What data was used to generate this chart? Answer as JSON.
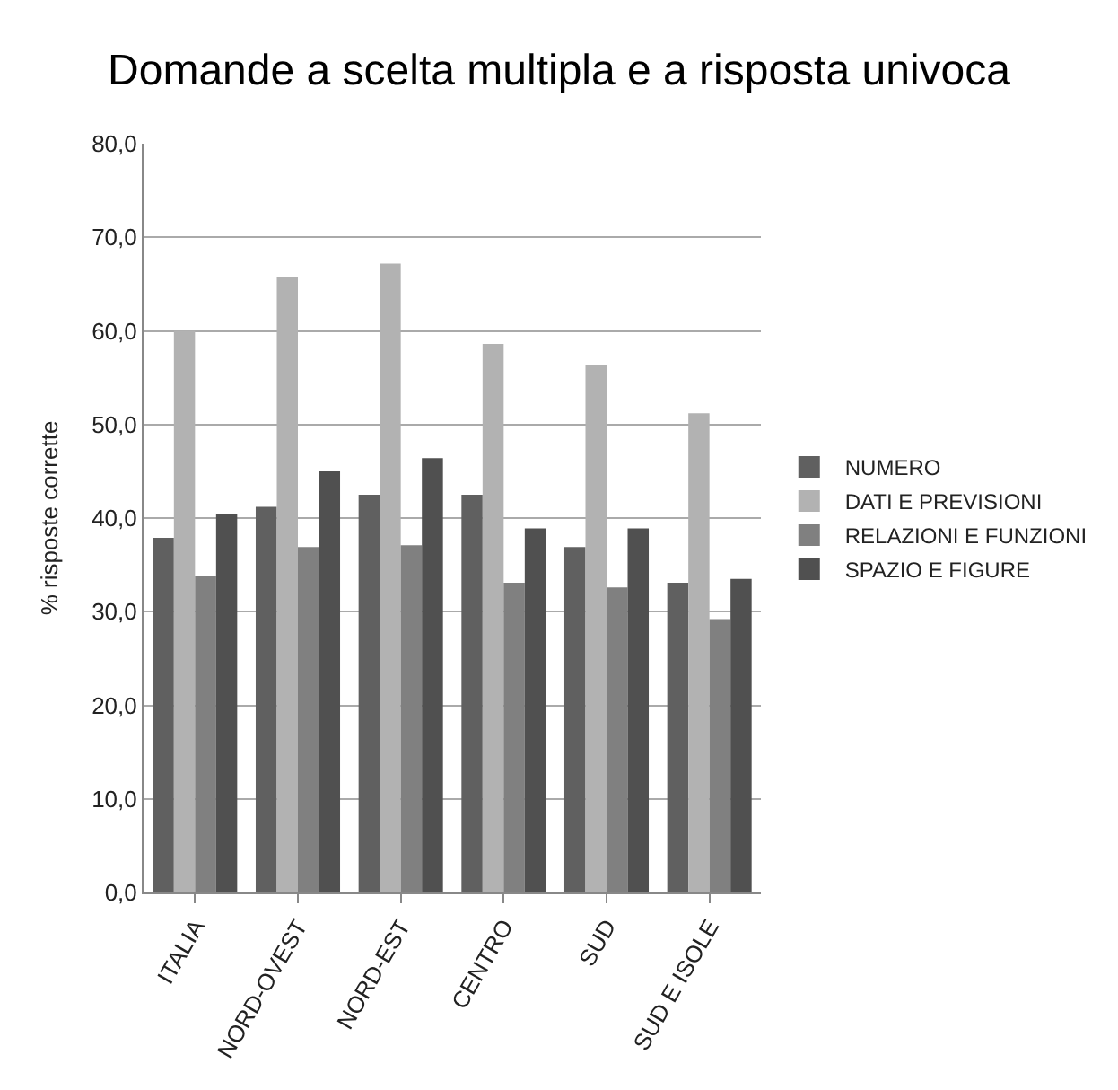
{
  "chart_data": {
    "type": "bar",
    "title": "Domande a scelta multipla e a risposta univoca",
    "ylabel": "% risposte corrette",
    "categories": [
      "ITALIA",
      "NORD-OVEST",
      "NORD-EST",
      "CENTRO",
      "SUD",
      "SUD E ISOLE"
    ],
    "series": [
      {
        "name": "NUMERO",
        "color": "#606060",
        "values": [
          37.9,
          41.2,
          42.5,
          42.5,
          36.9,
          33.1
        ]
      },
      {
        "name": "DATI E PREVISIONI",
        "color": "#b2b2b2",
        "values": [
          60.0,
          65.7,
          67.2,
          58.6,
          56.3,
          51.2
        ]
      },
      {
        "name": "RELAZIONI E FUNZIONI",
        "color": "#808080",
        "values": [
          33.8,
          36.9,
          37.1,
          33.1,
          32.6,
          29.2
        ]
      },
      {
        "name": "SPAZIO E FIGURE",
        "color": "#505050",
        "values": [
          40.4,
          45.0,
          46.4,
          38.9,
          38.9,
          33.5
        ]
      }
    ],
    "ylim": [
      0,
      80
    ],
    "yticks": [
      {
        "value": 0,
        "label": "0,0"
      },
      {
        "value": 10,
        "label": "10,0"
      },
      {
        "value": 20,
        "label": "20,0"
      },
      {
        "value": 30,
        "label": "30,0"
      },
      {
        "value": 40,
        "label": "40,0"
      },
      {
        "value": 50,
        "label": "50,0"
      },
      {
        "value": 60,
        "label": "60,0"
      },
      {
        "value": 70,
        "label": "70,0"
      },
      {
        "value": 80,
        "label": "80,0"
      }
    ],
    "grid": "y",
    "legend": "right"
  }
}
